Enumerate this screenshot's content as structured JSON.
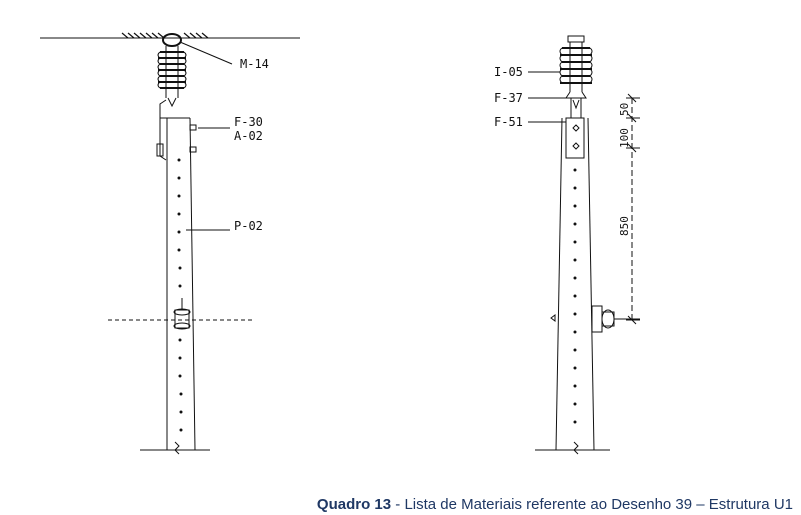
{
  "left_figure": {
    "labels": [
      "M-14",
      "F-30",
      "A-02",
      "P-02"
    ]
  },
  "right_figure": {
    "labels": [
      "I-05",
      "F-37",
      "F-51"
    ],
    "dimensions": [
      "50",
      "100",
      "850"
    ]
  },
  "caption": {
    "number": "Quadro 13",
    "text": " - Lista de Materiais referente ao Desenho 39 – Estrutura U1"
  },
  "colors": {
    "caption": "#1f3864",
    "lines": "#111111"
  }
}
